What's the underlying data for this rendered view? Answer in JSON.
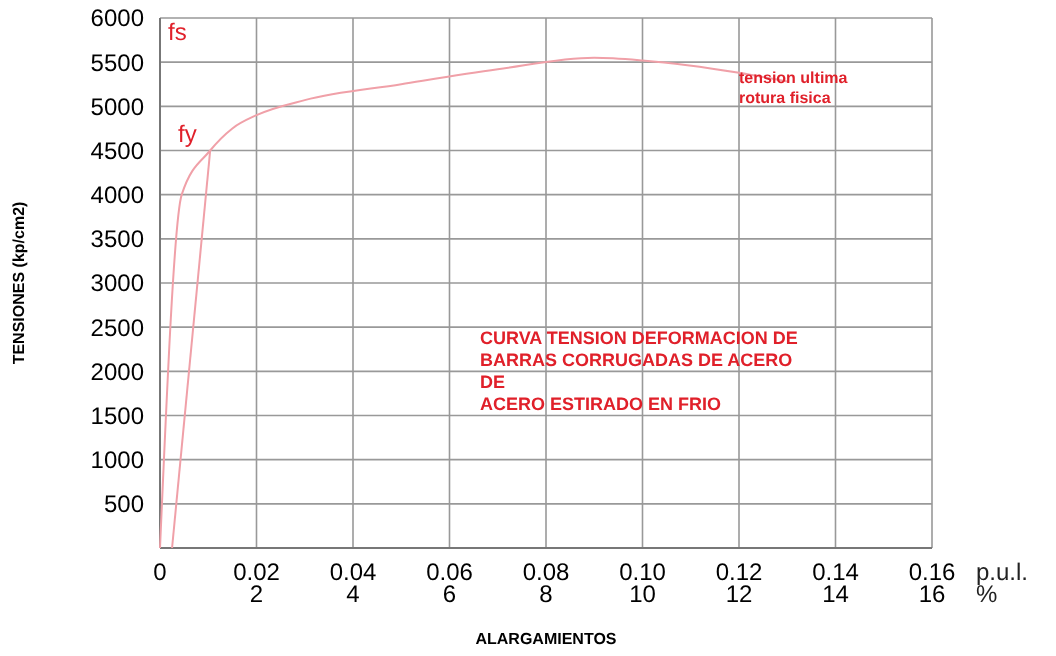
{
  "chart_data": {
    "type": "line",
    "xlabel": "ALARGAMIENTOS",
    "ylabel": "TENSIONES (kp/cm2)",
    "xlim": [
      0,
      0.16
    ],
    "ylim": [
      0,
      6000
    ],
    "xticks": [
      0,
      0.02,
      0.04,
      0.06,
      0.08,
      {
        "value": 0.1,
        "label": "0.10"
      },
      0.12,
      0.14,
      0.16
    ],
    "x2lim": [
      0,
      16
    ],
    "x2ticks": [
      2,
      4,
      6,
      8,
      10,
      12,
      14,
      16
    ],
    "x2label": "%",
    "yticks": [
      500,
      1000,
      1500,
      2000,
      2500,
      3000,
      3500,
      4000,
      4500,
      5000,
      5500,
      6000
    ],
    "grid": true,
    "marker": "none",
    "line_style": "solid",
    "series": [
      {
        "color": "#f0a0a8",
        "x": [
          0,
          0.0045,
          0.0104,
          0.015,
          0.02,
          0.03,
          0.05,
          0.07,
          0.09,
          0.1,
          0.12,
          0.13
        ],
        "values": [
          0,
          4000,
          4500,
          4750,
          4900,
          5070,
          5250,
          5420,
          5550,
          5520,
          5380,
          5280
        ]
      },
      {
        "color": "#f0a0a8",
        "x": [
          0.0025,
          0.0104
        ],
        "values": [
          0,
          4500
        ]
      }
    ],
    "annotations": [
      "fs",
      "fy",
      {
        "text": "tension ultima\nrotura fisica",
        "x": 0.12,
        "y": 5350
      },
      "CURVA TENSION DEFORMACION DE\nBARRAS CORRUGADAS DE ACERO\nDE\nACERO ESTIRADO EN FRIO",
      "p.u.l."
    ]
  }
}
